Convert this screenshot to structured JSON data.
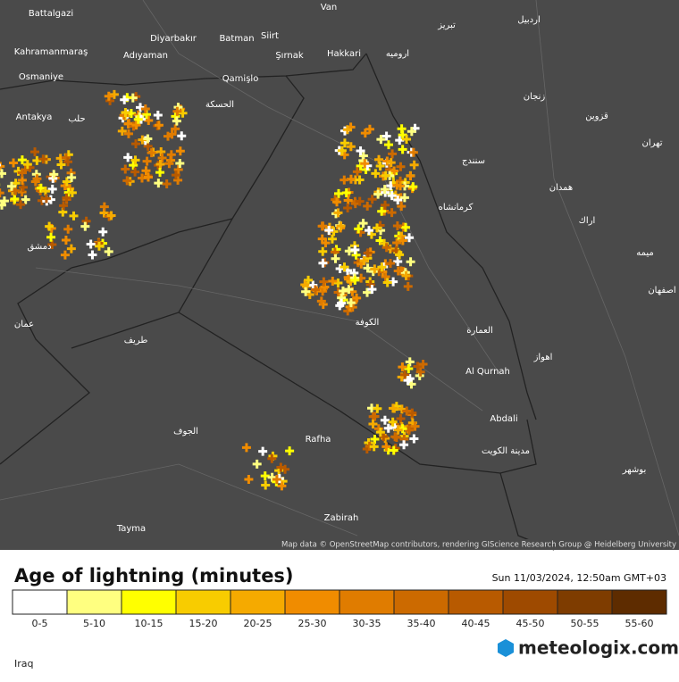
{
  "map": {
    "labels": [
      "Battalgazi",
      "Van",
      "Diyarbakır",
      "Batman",
      "Siirt",
      "Kahramanmaraş",
      "Adıyaman",
      "Şırnak",
      "Hakkari",
      "Osmaniye",
      "Qamişlo",
      "Antakya",
      "Zabirah",
      "Tayma",
      "Abdali",
      "Al Qurnah",
      "Rafha",
      "اردبيل",
      "تبريز",
      "ارومیه",
      "زنجان",
      "قزوين",
      "تهران",
      "همدان",
      "كرمانشاه",
      "اراك",
      "اهواز",
      "الكوفة",
      "العمارة",
      "مدينة الكويت",
      "دمشق",
      "حلب",
      "طريف",
      "الجوف",
      "عمان",
      "اصفهان",
      "الحسكة",
      "سنندج",
      "ميمه",
      "بوشهر"
    ],
    "attribution": "Map data © OpenStreetMap contributors, rendering GIScience Research Group @ Heidelberg University"
  },
  "legend": {
    "title": "Age of lightning (minutes)",
    "timestamp": "Sun 11/03/2024, 12:50am GMT+03",
    "bins": [
      {
        "label": "0-5",
        "color": "#ffffff"
      },
      {
        "label": "5-10",
        "color": "#ffff80"
      },
      {
        "label": "10-15",
        "color": "#ffff00"
      },
      {
        "label": "15-20",
        "color": "#f8cc00"
      },
      {
        "label": "20-25",
        "color": "#f5aa00"
      },
      {
        "label": "25-30",
        "color": "#f08c00"
      },
      {
        "label": "30-35",
        "color": "#e07c00"
      },
      {
        "label": "35-40",
        "color": "#cc6a00"
      },
      {
        "label": "40-45",
        "color": "#b85a00"
      },
      {
        "label": "45-50",
        "color": "#9e4a00"
      },
      {
        "label": "50-55",
        "color": "#7e3c00"
      },
      {
        "label": "55-60",
        "color": "#5e2c00"
      }
    ]
  },
  "footer": {
    "region": "Iraq",
    "brand": "meteologix.com"
  }
}
